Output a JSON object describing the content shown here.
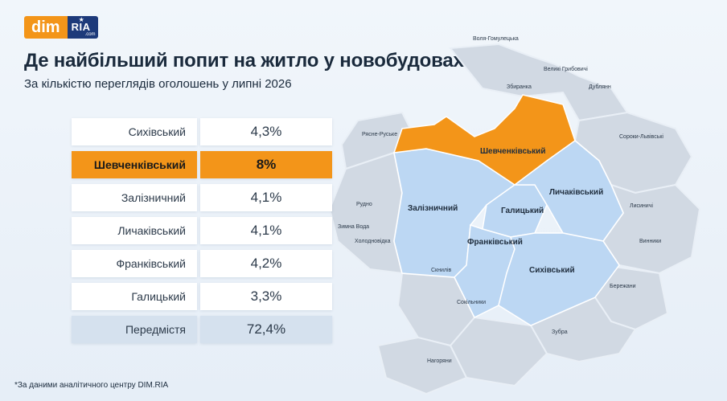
{
  "logo": {
    "left": "dim",
    "right": "RIA",
    "right_small": ".com"
  },
  "title": "Де найбільший попит на житло у новобудовах",
  "subtitle": "За кількістю переглядів оголошень у липні 2026",
  "footnote": "*За даними аналітичного центру DIM.RIA",
  "colors": {
    "accent": "#f39519",
    "district": "#bcd7f3",
    "suburb": "#d1d9e3",
    "total_row": "#d5e1ee"
  },
  "chart_data": {
    "type": "table",
    "columns": [
      "district",
      "share"
    ],
    "rows": [
      {
        "name": "Сихівський",
        "value": "4,3%"
      },
      {
        "name": "Шевченківський",
        "value": "8%",
        "highlight": true
      },
      {
        "name": "Залізничний",
        "value": "4,1%"
      },
      {
        "name": "Личаківський",
        "value": "4,1%"
      },
      {
        "name": "Франківський",
        "value": "4,2%"
      },
      {
        "name": "Галицький",
        "value": "3,3%"
      },
      {
        "name": "Передмістя",
        "value": "72,4%",
        "total": true
      }
    ]
  },
  "map": {
    "districts": [
      "Шевченківський",
      "Залізничний",
      "Галицький",
      "Личаківський",
      "Франківський",
      "Сихівський"
    ],
    "highlighted": "Шевченківський",
    "suburbs": [
      "Воля-Гомулецька",
      "Великі Грибовичі",
      "Збиранка",
      "Дублянн",
      "Рясне-Руське",
      "Сороки-Львівські",
      "Рудно",
      "Зимна Вода",
      "Холодновідка",
      "Лисиничі",
      "Винники",
      "Скнилів",
      "Бережани",
      "Сокільники",
      "Зубра",
      "Нагоряни"
    ]
  }
}
